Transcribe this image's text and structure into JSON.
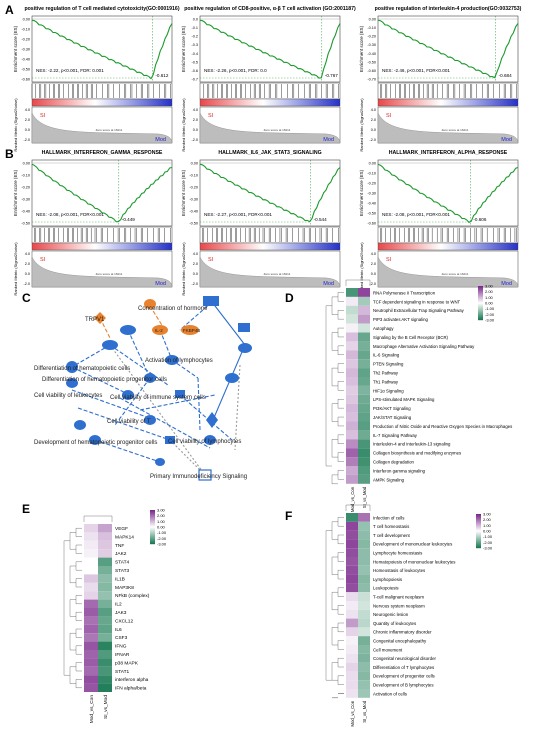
{
  "panel_letters": {
    "A": "A",
    "B": "B",
    "C": "C",
    "D": "D",
    "E": "E",
    "F": "F"
  },
  "gsea_axis": {
    "es_label": "Enrichment score (ES)",
    "rm_label": "Ranked Metric (Signal2Noise)",
    "left_group": "SI",
    "right_group": "Mod",
    "zero_text": "Zero score at 16211"
  },
  "gsea_plots": [
    {
      "title": "positive regulation of T cell mediated cytotoxicity(GO:0001916)",
      "stats": "NES: -2.22, p<0.001, FDR: 0.001",
      "min_label": "-0.612",
      "yticks": [
        "0.00",
        "-0.10",
        "-0.20",
        "-0.30",
        "-0.40",
        "-0.50",
        "-0.60"
      ],
      "rmticks": [
        "4.0",
        "2.0",
        "0.0",
        "-2.0"
      ],
      "min_pos": 0.86
    },
    {
      "title": "positive regulation of CD8-positive, α-β T cell activation (GO:2001187)",
      "stats": "NES: -2.26, p<0.001, FDR: 0.0",
      "min_label": "-0.767",
      "yticks": [
        "0.0",
        "-0.1",
        "-0.2",
        "-0.3",
        "-0.4",
        "-0.5",
        "-0.6",
        "-0.7"
      ],
      "rmticks": [
        "4.0",
        "2.0",
        "0.0",
        "-2.0"
      ],
      "min_pos": 0.87
    },
    {
      "title": "positive regulation of interleukin-4 production(GO:0032753)",
      "stats": "NES: -2.46, p<0.001, FDR<0.001",
      "min_label": "-0.684",
      "yticks": [
        "0.00",
        "-0.10",
        "-0.20",
        "-0.30",
        "-0.40",
        "-0.50",
        "-0.60",
        "-0.70"
      ],
      "rmticks": [
        "4.0",
        "2.0",
        "0.0",
        "-2.0"
      ],
      "min_pos": 0.84
    },
    {
      "title": "HALLMARK_INTERFERON_GAMMA_RESPONSE",
      "stats": "NES: -2.08, p<0.001, FDR<0.001",
      "min_label": "-0.449",
      "yticks": [
        "0.00",
        "-0.10",
        "-0.20",
        "-0.30",
        "-0.40",
        "-0.50"
      ],
      "rmticks": [
        "4.0",
        "2.0",
        "0.0",
        "-2.0"
      ],
      "min_pos": 0.62
    },
    {
      "title": "HALLMARK_IL6_JAK_STAT3_SIGNALING",
      "stats": "NES: -2.27, p<0.001, FDR<0.001",
      "min_label": "-0.544",
      "yticks": [
        "0.00",
        "-0.10",
        "-0.20",
        "-0.30",
        "-0.40",
        "-0.50"
      ],
      "rmticks": [
        "4.0",
        "2.0",
        "0.0",
        "-2.0"
      ],
      "min_pos": 0.79
    },
    {
      "title": "HALLMARK_INTERFERON_ALPHA_RESPONSE",
      "stats": "NES: -2.08, p<0.001, FDR<0.001",
      "min_label": "-0.606",
      "yticks": [
        "0.00",
        "-0.10",
        "-0.20",
        "-0.30",
        "-0.40",
        "-0.50",
        "-0.60"
      ],
      "rmticks": [
        "4.0",
        "2.0",
        "0.0",
        "-2.0"
      ],
      "min_pos": 0.66
    }
  ],
  "network": {
    "nodes": [
      {
        "label": "Concentration of hormone"
      },
      {
        "label": "TRPV1"
      },
      {
        "label": "IL-2"
      },
      {
        "label": "FKBP4B"
      },
      {
        "label": "Differentiation of hematopoietic cells"
      },
      {
        "label": "Activation of lymphocytes"
      },
      {
        "label": "Differentiation of hematopoietic progenitor cells"
      },
      {
        "label": "Cell viability of leukocytes"
      },
      {
        "label": "Cell viability of immune system cells"
      },
      {
        "label": "Cell viability of T"
      },
      {
        "label": "Development of hematopoietic progenitor cells"
      },
      {
        "label": "Cell viability of lymphocytes"
      },
      {
        "label": "Primary Immunodeficiency Signaling"
      }
    ],
    "colors": {
      "up": "#e8822e",
      "down": "#2f6fcf",
      "edge_blue": "#2f6fcf",
      "edge_orange": "#e8822e",
      "edge_gray": "#999999"
    }
  },
  "heatmap_cols": [
    "Mod_vs_Con",
    "SI_vs_Mod"
  ],
  "colorbar": {
    "ticks": [
      "3.00",
      "2.00",
      "1.00",
      "0.00",
      "-1.00",
      "-2.00",
      "-3.00"
    ],
    "high": "#7b2a8c",
    "mid": "#ffffff",
    "low": "#1b7b55"
  },
  "heatmap_D": {
    "rows": [
      "RNA Polymerase II Transcription",
      "TCF dependent signaling in response to WNT",
      "Neutrophil Extracellular Trap Signaling Pathway",
      "PIP3 activates AKT signaling",
      "Autophagy",
      "Signaling by the B Cell Receptor (BCR)",
      "Macrophage Alternative Activation Signaling Pathway",
      "IL-6 Signaling",
      "PTEN Signaling",
      "Th2 Pathway",
      "Th1 Pathway",
      "HIF1α Signaling",
      "LPS-stimulated MAPK Signaling",
      "PI3K/AKT Signaling",
      "JAK/STAT Signaling",
      "Production of Nitric Oxide and Reactive Oxygen Species in Macrophages",
      "IL-7 Signaling Pathway",
      "Interleukin-4 and Interleukin-13 signaling",
      "Collagen biosynthesis and modifying enzymes",
      "Collagen degradation",
      "Interferon gamma signaling",
      "AMPK Signaling"
    ],
    "values": [
      [
        -2.4,
        2.6
      ],
      [
        0.3,
        -1.2
      ],
      [
        -0.8,
        1.0
      ],
      [
        -0.6,
        1.4
      ],
      [
        0.2,
        -0.6
      ],
      [
        0.9,
        -2.0
      ],
      [
        0.6,
        -1.8
      ],
      [
        1.0,
        -2.0
      ],
      [
        0.8,
        -1.8
      ],
      [
        1.0,
        -2.1
      ],
      [
        0.9,
        -2.0
      ],
      [
        0.7,
        -1.7
      ],
      [
        0.8,
        -1.9
      ],
      [
        1.0,
        -2.0
      ],
      [
        0.9,
        -2.1
      ],
      [
        1.1,
        -2.2
      ],
      [
        0.9,
        -1.9
      ],
      [
        1.6,
        -2.4
      ],
      [
        2.2,
        -2.6
      ],
      [
        1.8,
        -2.5
      ],
      [
        1.2,
        -2.3
      ],
      [
        1.4,
        -2.2
      ]
    ]
  },
  "heatmap_E": {
    "rows": [
      "VEGF",
      "MAPK14",
      "TNF",
      "JAK2",
      "STAT4",
      "STAT3",
      "IL1B",
      "MAP3K8",
      "NFkB (complex)",
      "IL2",
      "JAK3",
      "CXCL12",
      "IL6",
      "CSF3",
      "IFNG",
      "IFNAR",
      "p38 MAPK",
      "STAT1",
      "interferon alpha",
      "IFN alpha/beta"
    ],
    "values": [
      [
        0.6,
        1.3
      ],
      [
        0.4,
        0.9
      ],
      [
        0.3,
        0.8
      ],
      [
        0.2,
        0.7
      ],
      [
        0.0,
        -2.2
      ],
      [
        0.0,
        -1.8
      ],
      [
        0.8,
        -1.5
      ],
      [
        0.5,
        -1.6
      ],
      [
        0.6,
        -1.4
      ],
      [
        2.1,
        -1.8
      ],
      [
        2.3,
        -2.2
      ],
      [
        2.0,
        -2.0
      ],
      [
        2.2,
        -2.1
      ],
      [
        1.9,
        -1.8
      ],
      [
        2.4,
        -2.8
      ],
      [
        2.2,
        -2.3
      ],
      [
        2.3,
        -2.6
      ],
      [
        2.1,
        -2.4
      ],
      [
        2.5,
        -2.7
      ],
      [
        2.4,
        -2.9
      ]
    ]
  },
  "heatmap_F": {
    "rows": [
      "Infection of cells",
      "T cell homeostasis",
      "T cell development",
      "Development of mononuclear leukocytes",
      "Lymphocyte homeostasis",
      "Hematopoiesis of mononuclear leukocytes",
      "Homeostasis of leukocytes",
      "Lymphopoiesis",
      "Leukopoiesis",
      "T-cell malignant neoplasm",
      "Nervous system neoplasm",
      "Neurogenic lesion",
      "Quantity of leukocytes",
      "Chronic inflammatory disorder",
      "Congenital encephalopathy",
      "Cell movement",
      "Congenital neurological disorder",
      "Differentiation of T lymphocytes",
      "Development of progenitor cells",
      "Development of B lymphocytes",
      "Activation of cells"
    ],
    "values": [
      [
        -2.6,
        2.0
      ],
      [
        2.6,
        -1.4
      ],
      [
        2.5,
        -1.5
      ],
      [
        2.6,
        -1.6
      ],
      [
        2.5,
        -1.5
      ],
      [
        2.4,
        -1.5
      ],
      [
        2.5,
        -1.4
      ],
      [
        2.6,
        -1.6
      ],
      [
        2.5,
        -1.5
      ],
      [
        0.5,
        -0.7
      ],
      [
        0.3,
        -0.6
      ],
      [
        0.4,
        -0.8
      ],
      [
        1.4,
        -0.9
      ],
      [
        0.6,
        -0.6
      ],
      [
        0.2,
        -1.8
      ],
      [
        0.3,
        -1.6
      ],
      [
        0.4,
        -1.7
      ],
      [
        0.6,
        -1.5
      ],
      [
        0.5,
        -1.6
      ],
      [
        0.5,
        -1.4
      ],
      [
        0.4,
        -1.3
      ]
    ]
  }
}
